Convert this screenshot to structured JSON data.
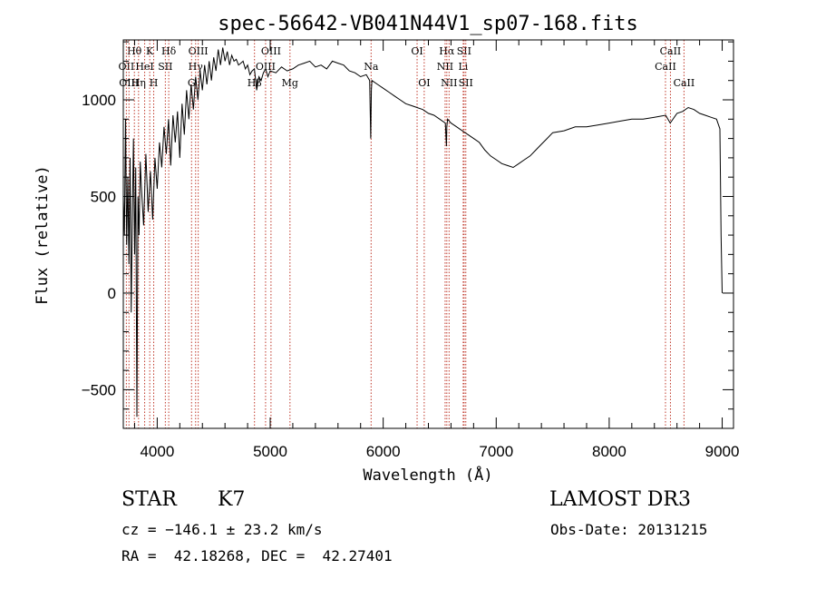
{
  "chart_data": {
    "type": "line",
    "title": "spec-56642-VB041N44V1_sp07-168.fits",
    "xlabel": "Wavelength (Å)",
    "ylabel": "Flux (relative)",
    "xlim": [
      3700,
      9100
    ],
    "ylim": [
      -700,
      1310
    ],
    "xticks": [
      4000,
      5000,
      6000,
      7000,
      8000,
      9000
    ],
    "xtick_labels": [
      "4000",
      "5000",
      "6000",
      "7000",
      "8000",
      "9000"
    ],
    "yticks": [
      -500,
      0,
      500,
      1000
    ],
    "ytick_labels": [
      "−500",
      "0",
      "500",
      "1000"
    ],
    "series": [
      {
        "name": "flux",
        "x": [
          3700,
          3710,
          3720,
          3730,
          3740,
          3750,
          3760,
          3770,
          3780,
          3790,
          3800,
          3810,
          3820,
          3830,
          3840,
          3850,
          3860,
          3880,
          3900,
          3920,
          3940,
          3960,
          3980,
          4000,
          4020,
          4040,
          4060,
          4080,
          4100,
          4120,
          4140,
          4160,
          4180,
          4200,
          4220,
          4240,
          4260,
          4280,
          4300,
          4320,
          4340,
          4360,
          4380,
          4400,
          4420,
          4440,
          4460,
          4480,
          4500,
          4520,
          4540,
          4560,
          4580,
          4600,
          4620,
          4640,
          4660,
          4680,
          4700,
          4720,
          4740,
          4760,
          4780,
          4800,
          4820,
          4840,
          4860,
          4880,
          4900,
          4920,
          4940,
          4960,
          4980,
          5000,
          5050,
          5100,
          5150,
          5200,
          5250,
          5300,
          5350,
          5400,
          5450,
          5500,
          5550,
          5600,
          5650,
          5700,
          5750,
          5800,
          5850,
          5880,
          5890,
          5895,
          5900,
          5950,
          6000,
          6050,
          6100,
          6150,
          6200,
          6250,
          6300,
          6350,
          6400,
          6450,
          6500,
          6550,
          6560,
          6563,
          6570,
          6600,
          6650,
          6700,
          6750,
          6800,
          6850,
          6900,
          6950,
          7000,
          7050,
          7100,
          7150,
          7200,
          7250,
          7300,
          7350,
          7400,
          7450,
          7500,
          7600,
          7700,
          7800,
          7900,
          8000,
          8100,
          8200,
          8300,
          8400,
          8500,
          8540,
          8600,
          8650,
          8700,
          8750,
          8800,
          8850,
          8900,
          8950,
          8980,
          8990,
          9000
        ],
        "y": [
          500,
          300,
          900,
          250,
          600,
          150,
          700,
          -100,
          400,
          800,
          200,
          650,
          -640,
          500,
          300,
          680,
          550,
          350,
          720,
          420,
          630,
          380,
          700,
          540,
          780,
          650,
          860,
          720,
          900,
          660,
          920,
          780,
          940,
          700,
          980,
          820,
          1050,
          900,
          1080,
          950,
          1120,
          1000,
          1150,
          1050,
          1180,
          1080,
          1200,
          1100,
          1220,
          1150,
          1260,
          1180,
          1270,
          1200,
          1250,
          1180,
          1230,
          1200,
          1210,
          1180,
          1190,
          1200,
          1160,
          1180,
          1130,
          1150,
          1160,
          1050,
          1120,
          1100,
          1140,
          1160,
          1120,
          1150,
          1140,
          1170,
          1150,
          1160,
          1180,
          1190,
          1200,
          1170,
          1180,
          1160,
          1200,
          1190,
          1180,
          1150,
          1140,
          1120,
          1130,
          1100,
          800,
          1050,
          1100,
          1080,
          1060,
          1040,
          1020,
          1000,
          980,
          970,
          960,
          950,
          930,
          920,
          900,
          880,
          760,
          860,
          900,
          880,
          860,
          840,
          820,
          800,
          780,
          740,
          710,
          690,
          670,
          660,
          650,
          670,
          690,
          710,
          740,
          770,
          800,
          830,
          840,
          860,
          860,
          870,
          880,
          890,
          900,
          900,
          910,
          920,
          880,
          930,
          940,
          960,
          950,
          930,
          920,
          910,
          900,
          850,
          300,
          0
        ]
      }
    ],
    "spectral_lines": [
      {
        "label": "Hθ",
        "wavelength": 3798,
        "row": 0
      },
      {
        "label": "OII",
        "wavelength": 3727,
        "row": 1
      },
      {
        "label": "OIII",
        "wavelength": 3750,
        "row": 2
      },
      {
        "label": "K",
        "wavelength": 3934,
        "row": 0
      },
      {
        "label": "HeI",
        "wavelength": 3889,
        "row": 1
      },
      {
        "label": "Hη",
        "wavelength": 3835,
        "row": 2
      },
      {
        "label": "Hδ",
        "wavelength": 4102,
        "row": 0
      },
      {
        "label": "SII",
        "wavelength": 4072,
        "row": 1
      },
      {
        "label": "H",
        "wavelength": 3969,
        "row": 2
      },
      {
        "label": "OIII",
        "wavelength": 4363,
        "row": 0
      },
      {
        "label": "Hγ",
        "wavelength": 4340,
        "row": 1
      },
      {
        "label": "G",
        "wavelength": 4304,
        "row": 2
      },
      {
        "label": "OIII",
        "wavelength": 5007,
        "row": 0
      },
      {
        "label": "OIII",
        "wavelength": 4959,
        "row": 1
      },
      {
        "label": "Hβ",
        "wavelength": 4861,
        "row": 2
      },
      {
        "label": "Mg",
        "wavelength": 5175,
        "row": 3
      },
      {
        "label": "Na",
        "wavelength": 5893,
        "row": 1
      },
      {
        "label": "OI",
        "wavelength": 6300,
        "row": 0
      },
      {
        "label": "OI",
        "wavelength": 6363,
        "row": 2
      },
      {
        "label": "Hα",
        "wavelength": 6563,
        "row": 0
      },
      {
        "label": "NII",
        "wavelength": 6548,
        "row": 1
      },
      {
        "label": "NII",
        "wavelength": 6583,
        "row": 2
      },
      {
        "label": "SII",
        "wavelength": 6716,
        "row": 0
      },
      {
        "label": "Li",
        "wavelength": 6708,
        "row": 1
      },
      {
        "label": "SII",
        "wavelength": 6731,
        "row": 2
      },
      {
        "label": "CaII",
        "wavelength": 8542,
        "row": 0
      },
      {
        "label": "CaII",
        "wavelength": 8498,
        "row": 1
      },
      {
        "label": "CaII",
        "wavelength": 8662,
        "row": 2
      }
    ]
  },
  "info": {
    "class_label": "STAR",
    "subclass": "K7",
    "survey": "LAMOST DR3",
    "redshift_line": "cz = −146.1 ± 23.2 km/s",
    "obs_date_line": "Obs-Date: 20131215",
    "coords_line": "RA =  42.18268, DEC =  42.27401"
  }
}
